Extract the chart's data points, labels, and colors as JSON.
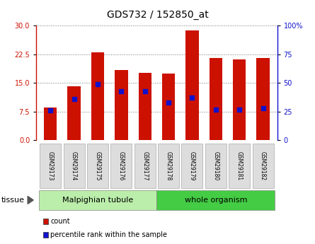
{
  "title": "GDS732 / 152850_at",
  "samples": [
    "GSM29173",
    "GSM29174",
    "GSM29175",
    "GSM29176",
    "GSM29177",
    "GSM29178",
    "GSM29179",
    "GSM29180",
    "GSM29181",
    "GSM29182"
  ],
  "counts": [
    8.5,
    14.2,
    23.0,
    18.3,
    17.6,
    17.4,
    28.8,
    21.5,
    21.2,
    21.5
  ],
  "percentiles": [
    26,
    36,
    49,
    43,
    43,
    33,
    37,
    27,
    27,
    28
  ],
  "ylim_left": [
    0,
    30
  ],
  "ylim_right": [
    0,
    100
  ],
  "yticks_left": [
    0,
    7.5,
    15,
    22.5,
    30
  ],
  "yticks_right": [
    0,
    25,
    50,
    75,
    100
  ],
  "bar_color": "#cc1100",
  "dot_color": "#1111cc",
  "tissue_groups": [
    {
      "label": "Malpighian tubule",
      "start": 0,
      "end": 5,
      "color": "#bbeeaa"
    },
    {
      "label": "whole organism",
      "start": 5,
      "end": 10,
      "color": "#44cc44"
    }
  ],
  "legend_items": [
    {
      "label": "count",
      "color": "#cc1100"
    },
    {
      "label": "percentile rank within the sample",
      "color": "#1111cc"
    }
  ],
  "tissue_label": "tissue",
  "grid_color": "#777777",
  "bar_width": 0.55,
  "title_fontsize": 10,
  "tick_fontsize": 7,
  "sample_fontsize": 5.5,
  "tissue_fontsize": 8,
  "legend_fontsize": 7
}
